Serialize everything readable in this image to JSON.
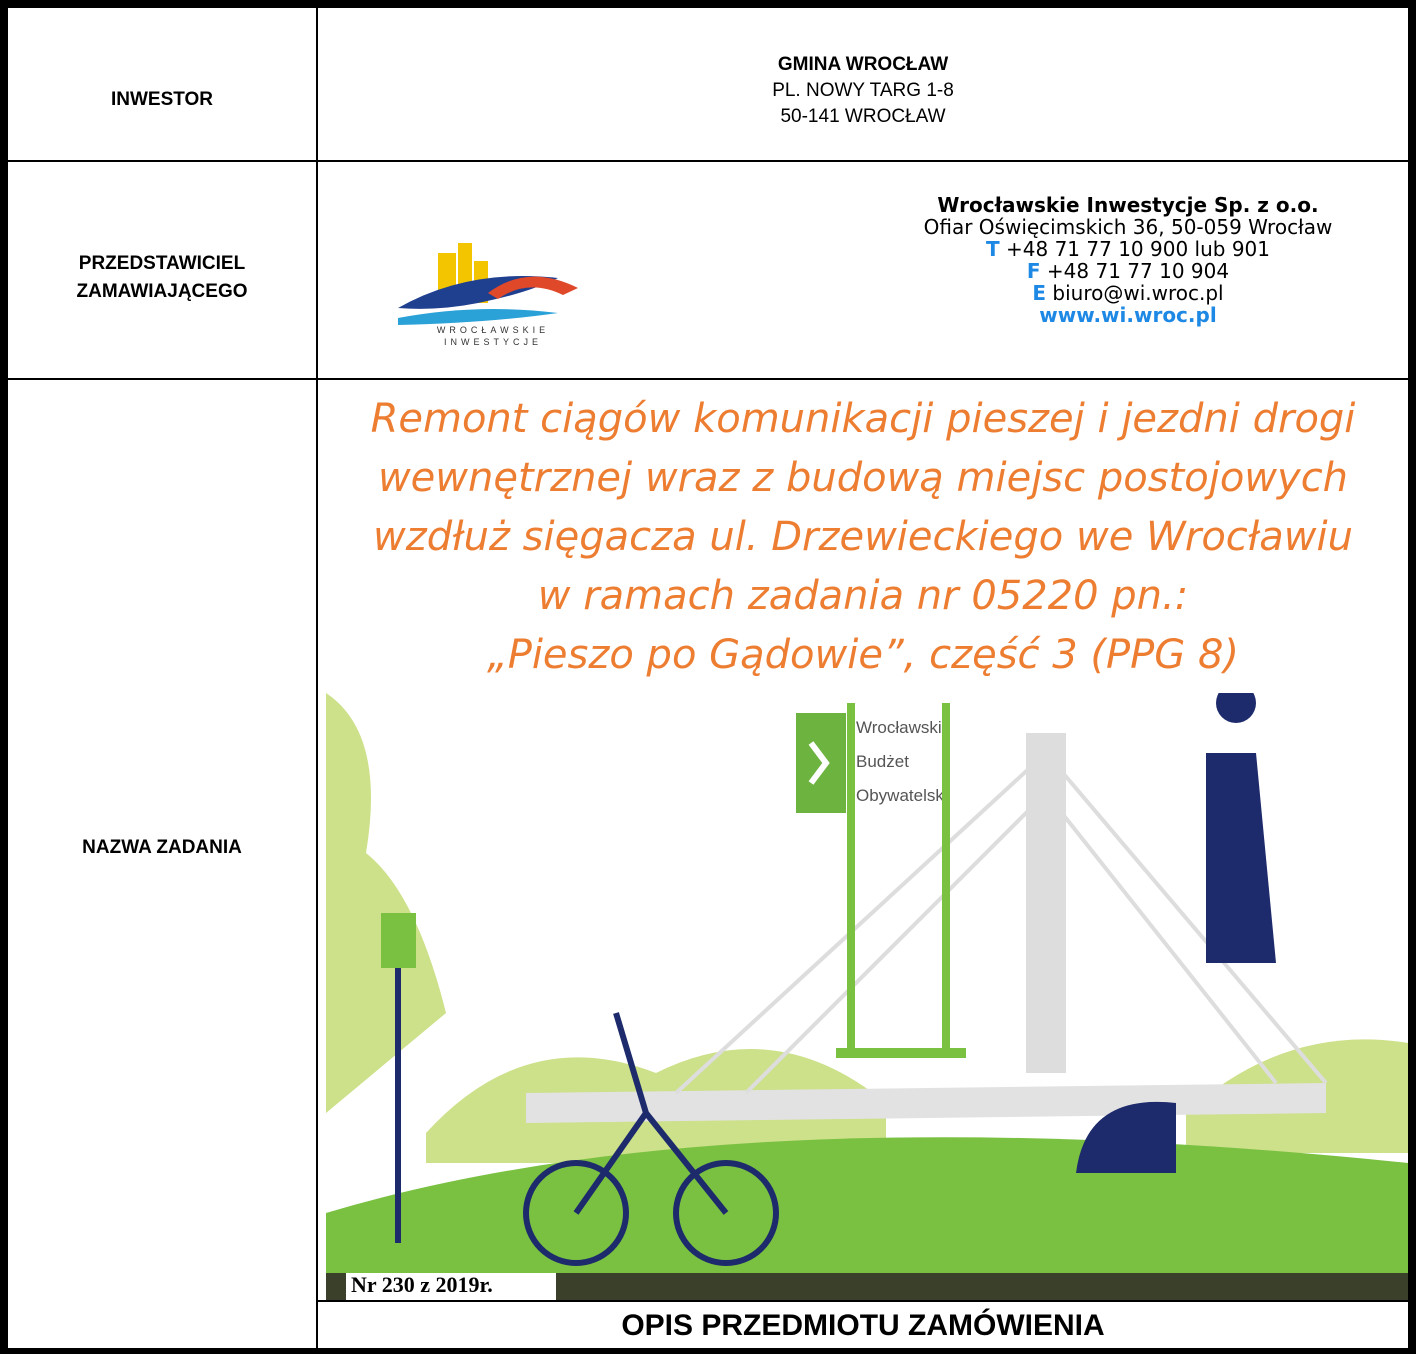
{
  "inwestor": {
    "label": "INWESTOR",
    "name": "GMINA WROCŁAW",
    "address": "PL. NOWY TARG 1-8",
    "city": "50-141 WROCŁAW"
  },
  "przedstawiciel": {
    "label_lines": [
      "PRZEDSTAWICIEL",
      "ZAMAWIAJĄCEGO"
    ],
    "logo_lines": [
      "WROCŁAWSKIE",
      "INWESTYCJE"
    ],
    "company": "Wrocławskie Inwestycje Sp. z o.o.",
    "address": "Ofiar Oświęcimskich 36, 50-059 Wrocław",
    "phone": {
      "prefix": "T",
      "text": "+48 71 77 10 900 lub 901"
    },
    "fax": {
      "prefix": "F",
      "text": "+48 71 77 10 904"
    },
    "email": {
      "prefix": "E",
      "text": "biuro@wi.wroc.pl"
    },
    "www": "www.wi.wroc.pl"
  },
  "zadanie": {
    "label": "NAZWA ZADANIA",
    "title_lines": [
      "Remont ciągów komunikacji pieszej i jezdni drogi",
      "wewnętrznej wraz z budową miejsc postojowych",
      "wzdłuż sięgacza ul. Drzewieckiego we Wrocławiu",
      "w ramach zadania nr 05220 pn.:",
      "„Pieszo po Gądowie”,  część 3 (PPG 8)"
    ],
    "badge_lines": [
      "Wrocławski",
      "Budżet",
      "Obywatelski"
    ],
    "number": "Nr 230 z 2019r."
  },
  "footer": "OPIS PRZEDMIOTU ZAMÓWIENIA"
}
